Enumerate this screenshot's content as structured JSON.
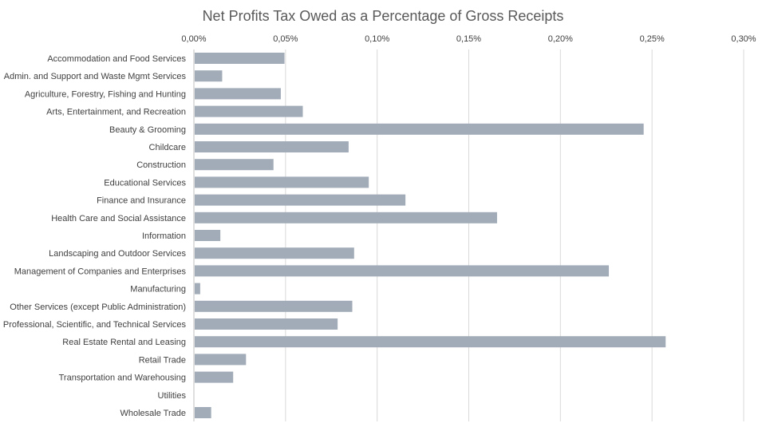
{
  "chart_data": {
    "type": "bar",
    "orientation": "horizontal",
    "title": "Net Profits Tax Owed as a Percentage of Gross Receipts",
    "xlabel": "",
    "ylabel": "",
    "xlim": [
      0,
      0.3
    ],
    "x_ticks": [
      "0,00%",
      "0,05%",
      "0,10%",
      "0,15%",
      "0,20%",
      "0,25%",
      "0,30%"
    ],
    "x_tick_values": [
      0,
      0.05,
      0.1,
      0.15,
      0.2,
      0.25,
      0.3
    ],
    "x_axis_position": "top",
    "grid": true,
    "legend": "none",
    "categories": [
      "Accommodation and Food Services",
      "Admin. and Support and Waste Mgmt Services",
      "Agriculture, Forestry, Fishing and Hunting",
      "Arts, Entertainment, and Recreation",
      "Beauty & Grooming",
      "Childcare",
      "Construction",
      "Educational Services",
      "Finance and Insurance",
      "Health Care and Social Assistance",
      "Information",
      "Landscaping and Outdoor Services",
      "Management of Companies and Enterprises",
      "Manufacturing",
      "Other Services (except Public Administration)",
      "Professional, Scientific, and Technical Services",
      "Real Estate Rental and Leasing",
      "Retail Trade",
      "Transportation and Warehousing",
      "Utilities",
      "Wholesale Trade"
    ],
    "values": [
      0.049,
      0.015,
      0.047,
      0.059,
      0.245,
      0.084,
      0.043,
      0.095,
      0.115,
      0.165,
      0.014,
      0.087,
      0.226,
      0.003,
      0.086,
      0.078,
      0.257,
      0.028,
      0.021,
      0.0,
      0.009
    ],
    "colors": {
      "bar": "#a2acb8",
      "grid": "#d9d9d9",
      "axis": "#bfbfbf",
      "text": "#404040",
      "title": "#595959"
    }
  }
}
